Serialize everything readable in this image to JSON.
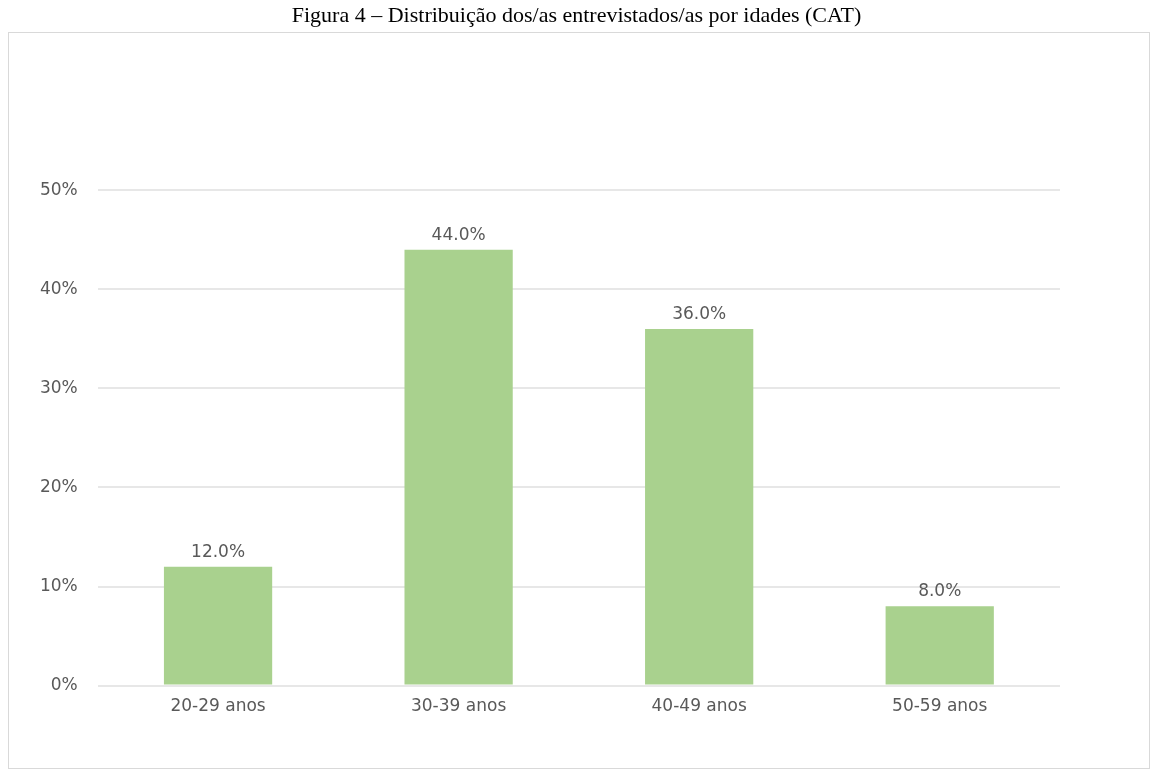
{
  "chart_data": {
    "type": "bar",
    "title": "Figura 4 – Distribuição dos/as entrevistados/as por idades (CAT)",
    "categories": [
      "20-29 anos",
      "30-39 anos",
      "40-49 anos",
      "50-59 anos"
    ],
    "values": [
      12,
      44,
      36,
      8
    ],
    "color": "#a9d18e",
    "value_labels": [
      "12.0%",
      "44.0%",
      "36.0%",
      "8.0%"
    ],
    "ylim": [
      0,
      50
    ],
    "yticks": [
      {
        "value": 0,
        "label": "0%"
      },
      {
        "value": 10,
        "label": "10%"
      },
      {
        "value": 20,
        "label": "20%"
      },
      {
        "value": 30,
        "label": "30%"
      },
      {
        "value": 40,
        "label": "40%"
      },
      {
        "value": 50,
        "label": "50%"
      }
    ],
    "grid": "y"
  }
}
